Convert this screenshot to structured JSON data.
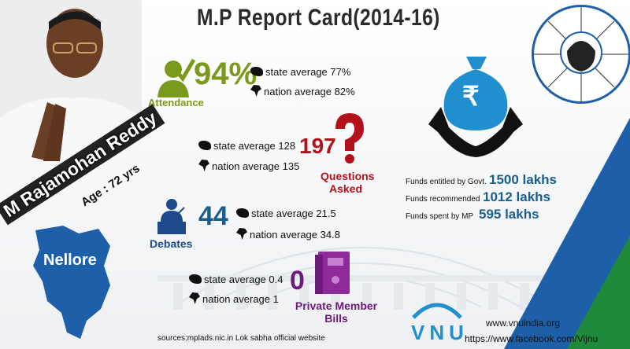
{
  "title": "M.P Report Card(2014-16)",
  "mp": {
    "name": "M Rajamohan Reddy",
    "age": "Age : 72 yrs",
    "constituency": "Nellore"
  },
  "attendance": {
    "value": "94%",
    "label": "Attendance",
    "state_avg": "state average 77%",
    "nation_avg": "nation average 82%"
  },
  "questions": {
    "value": "197",
    "label_line1": "Questions",
    "label_line2": "Asked",
    "state_avg": "state average 128",
    "nation_avg": "nation average 135"
  },
  "debates": {
    "value": "44",
    "label": "Debates",
    "state_avg": "state average 21.5",
    "nation_avg": "nation average 34.8"
  },
  "pmb": {
    "value": "0",
    "label_line1": "Private Member",
    "label_line2": "Bills",
    "state_avg": "state average 0.4",
    "nation_avg": "nation average 1"
  },
  "funds": {
    "currency_symbol": "₹",
    "rows": [
      {
        "label": "Funds entitled by Govt.",
        "value": "1500 lakhs"
      },
      {
        "label": "Funds recommended",
        "value": "1012 lakhs"
      },
      {
        "label": "Funds spent by MP",
        "value": "595 lakhs"
      }
    ]
  },
  "footer": {
    "source": "sources:mplads.nic.in Lok sabha official website",
    "website": "www.vnuindia.org",
    "facebook": "https://www.facebook.com/Vijnu",
    "logo_text": "VNU"
  },
  "colors": {
    "accent_blue": "#1d5fa8",
    "accent_green": "#1f8a3a",
    "attendance_green": "#7a9a1c",
    "questions_red": "#b3111b",
    "pmb_purple": "#6b1b78",
    "funds_teal": "#1a5f8c",
    "icon_blue": "#1f8fd0"
  }
}
